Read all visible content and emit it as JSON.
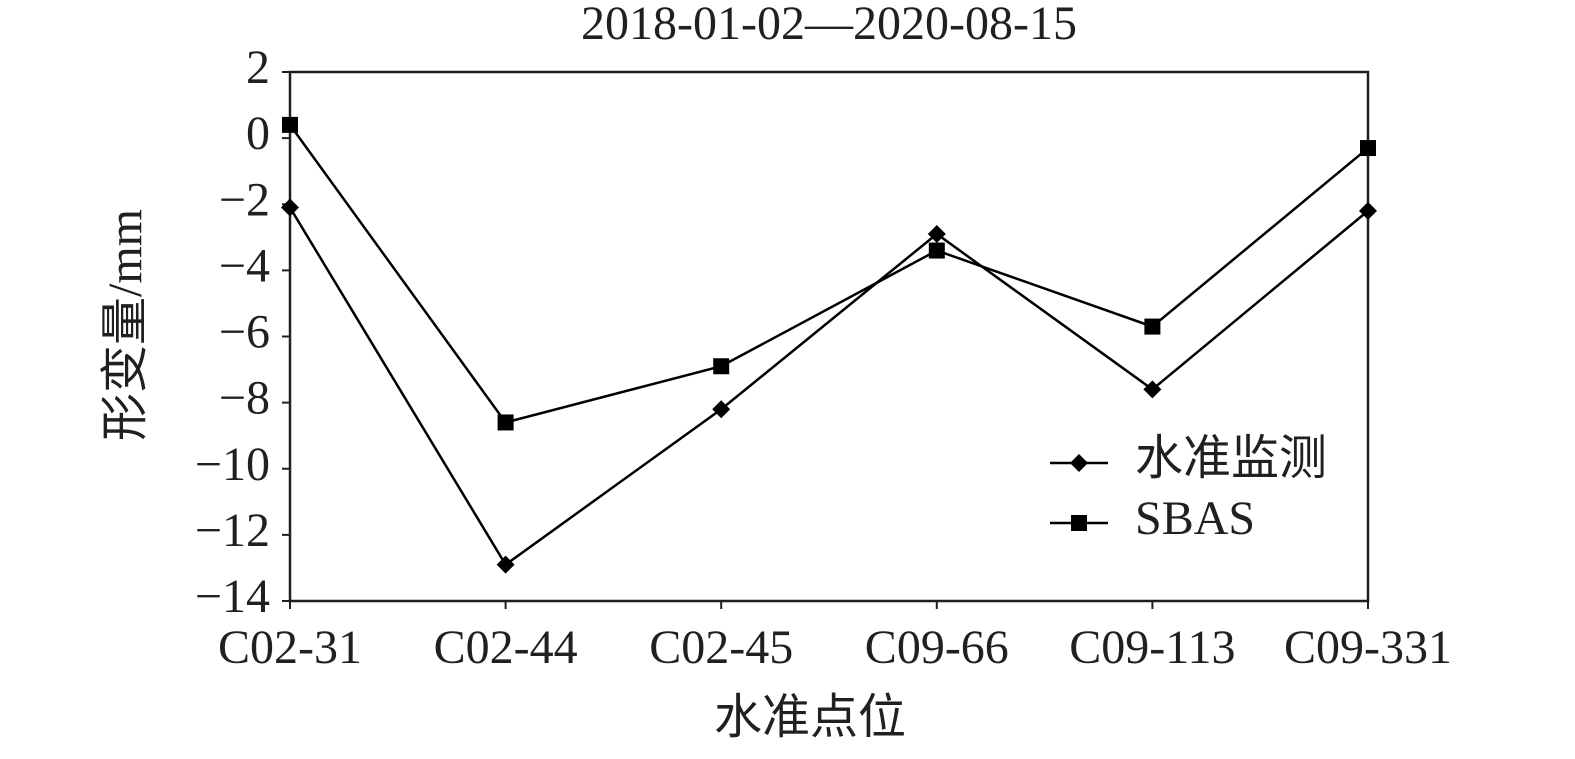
{
  "chart_data": {
    "type": "line",
    "title": "2018-01-02—2020-08-15",
    "x_label": "水准点位",
    "y_label": "形变量/mm",
    "categories": [
      "C02-31",
      "C02-44",
      "C02-45",
      "C09-66",
      "C09-113",
      "C09-331"
    ],
    "series": [
      {
        "name": "水准监测",
        "color": "#000000",
        "marker": "diamond",
        "values": [
          -2.1,
          -12.9,
          -8.2,
          -2.9,
          -7.6,
          -2.2
        ]
      },
      {
        "name": "SBAS",
        "color": "#000000",
        "marker": "square",
        "values": [
          0.4,
          -8.6,
          -6.9,
          -3.4,
          -5.7,
          -0.3
        ]
      }
    ],
    "ylim": [
      -14,
      2
    ],
    "yticks": [
      {
        "value": -14,
        "label": "−14"
      },
      {
        "value": -12,
        "label": "−12"
      },
      {
        "value": -10,
        "label": "−10"
      },
      {
        "value": -8,
        "label": "−8"
      },
      {
        "value": -6,
        "label": "−6"
      },
      {
        "value": -4,
        "label": "−4"
      },
      {
        "value": -2,
        "label": "−2"
      },
      0,
      2
    ],
    "grid": false,
    "legend": "lower right"
  }
}
